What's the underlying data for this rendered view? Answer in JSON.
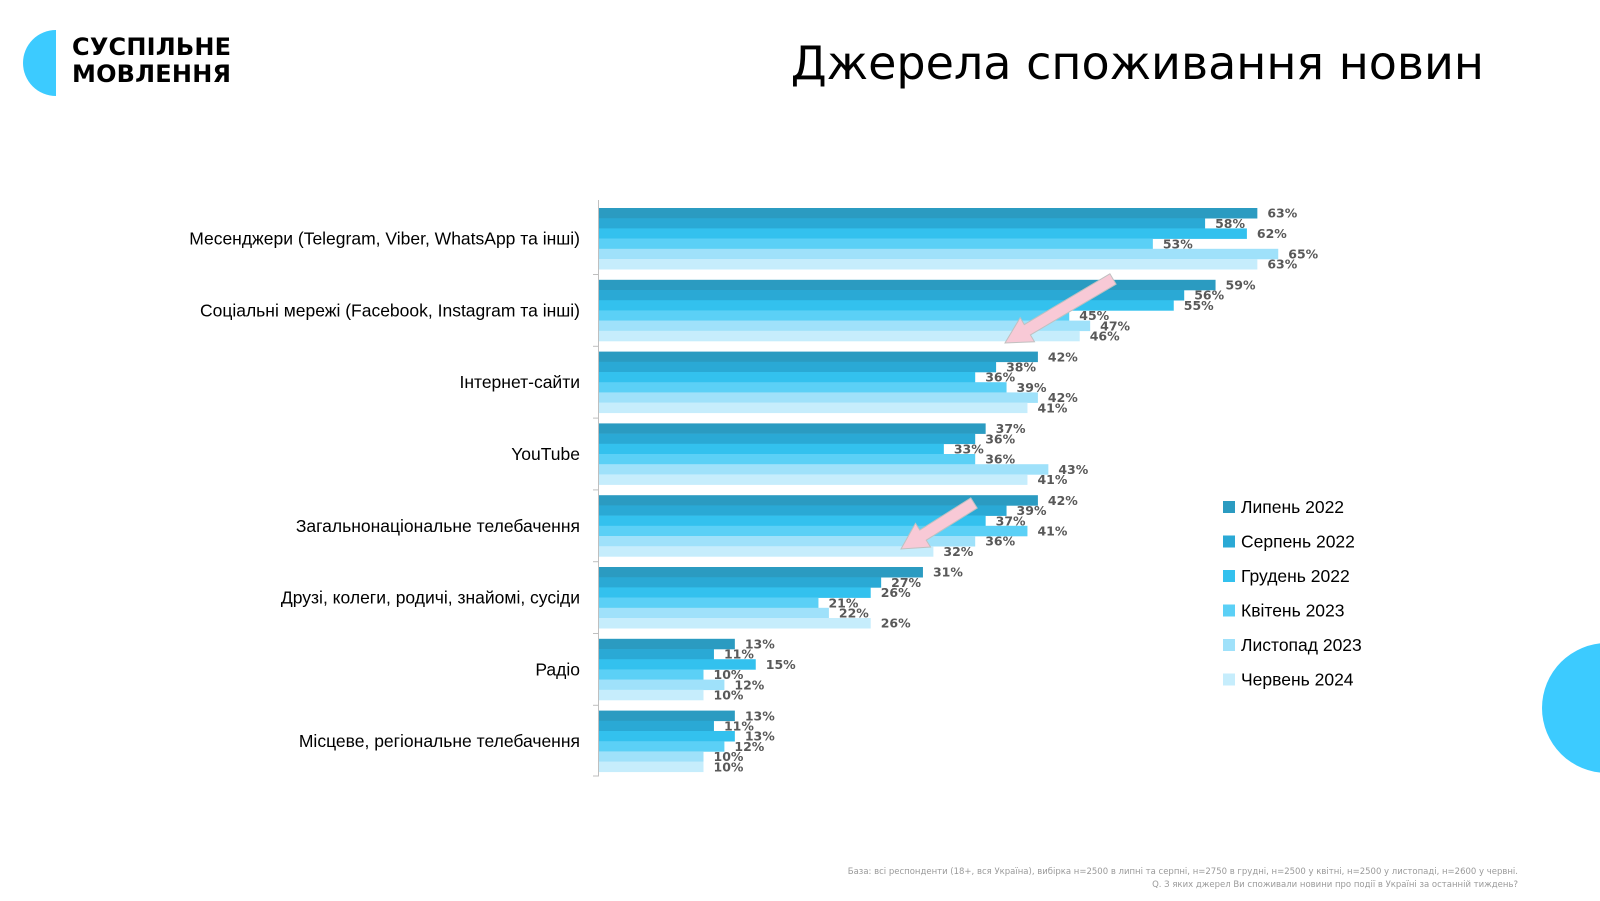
{
  "brand": {
    "line1": "СУСПІЛЬНЕ",
    "line2": "МОВЛЕННЯ"
  },
  "title": "Джерела споживання новин",
  "colors": {
    "accent": "#3ccbff",
    "arrow": "#f8c9d6",
    "series": [
      "#2b9bc1",
      "#2aa9d5",
      "#33c1ee",
      "#5bd0f6",
      "#9fe1fa",
      "#c6edfc"
    ]
  },
  "footnote": {
    "line1": "База: всі респонденти (18+, вся Україна), вибірка н=2500 в липні та серпні, н=2750 в грудні, н=2500 у квітні, н=2500 у листопаді, н=2600 у червні.",
    "line2": "Q. З яких джерел Ви споживали новини про події в Україні за останній тиждень?"
  },
  "chart_data": {
    "type": "bar",
    "orientation": "horizontal",
    "categories": [
      "Месенджери (Telegram, Viber, WhatsApp та інші)",
      "Соціальні мережі (Facebook, Instagram та інші)",
      "Інтернет-сайти",
      "YouTube",
      "Загальнонаціональне телебачення",
      "Друзі, колеги, родичі, знайомі, сусіди",
      "Радіо",
      "Місцеве, регіональне телебачення"
    ],
    "series": [
      {
        "name": "Липень 2022",
        "values": [
          63,
          59,
          42,
          37,
          42,
          31,
          13,
          13
        ]
      },
      {
        "name": "Серпень 2022",
        "values": [
          58,
          56,
          38,
          36,
          39,
          27,
          11,
          11
        ]
      },
      {
        "name": "Грудень 2022",
        "values": [
          62,
          55,
          36,
          33,
          37,
          26,
          15,
          13
        ]
      },
      {
        "name": "Квітень 2023",
        "values": [
          53,
          45,
          39,
          36,
          41,
          21,
          10,
          12
        ]
      },
      {
        "name": "Листопад 2023",
        "values": [
          65,
          47,
          42,
          43,
          36,
          22,
          12,
          10
        ]
      },
      {
        "name": "Червень 2024",
        "values": [
          63,
          46,
          41,
          41,
          32,
          26,
          10,
          10
        ]
      }
    ],
    "value_suffix": "%",
    "legend_position": "right",
    "grid": false
  }
}
